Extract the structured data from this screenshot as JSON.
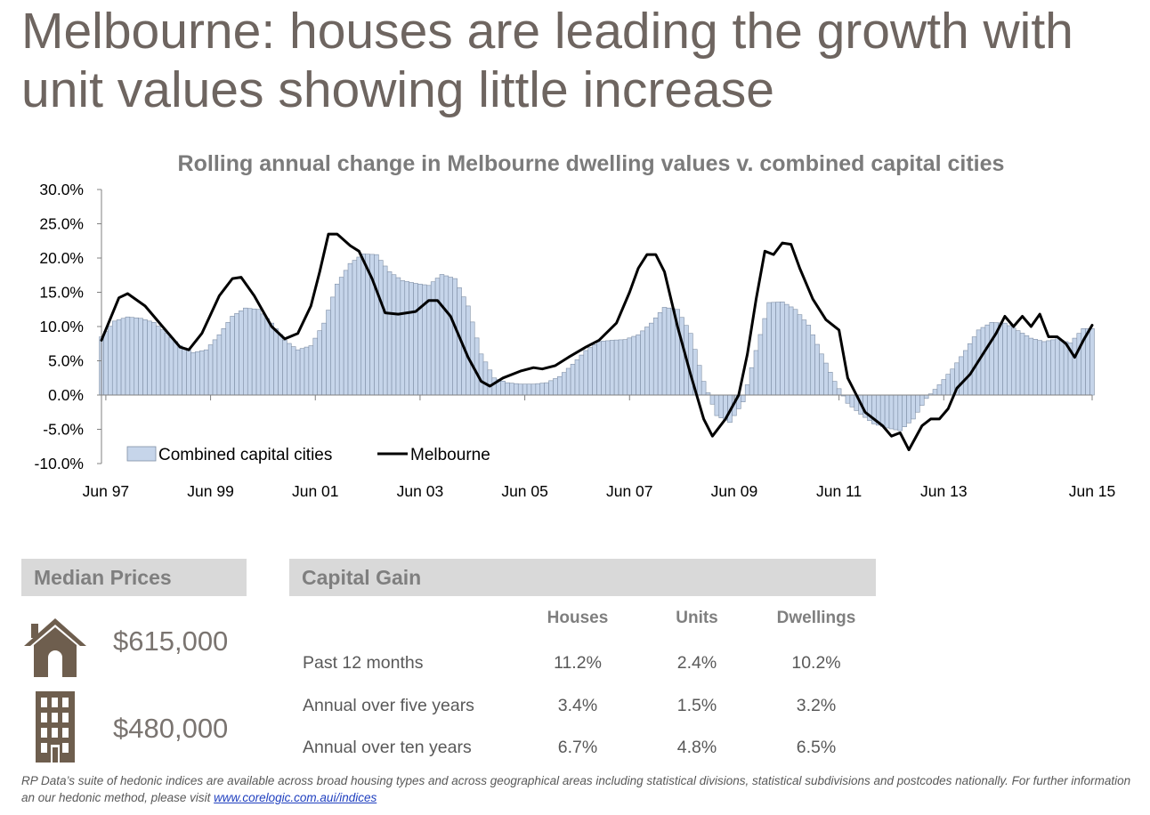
{
  "headline": {
    "line1": "Melbourne: houses are leading the growth with",
    "line2": "unit values showing little increase"
  },
  "chart_data": {
    "type": "bar+line",
    "title": "Rolling annual change in Melbourne dwelling values v. combined capital cities",
    "y_ticks": [
      "30.0%",
      "25.0%",
      "20.0%",
      "15.0%",
      "10.0%",
      "5.0%",
      "0.0%",
      "-5.0%",
      "-10.0%"
    ],
    "ylim": [
      -10,
      30
    ],
    "x_ticks": [
      "Jun 97",
      "Jun 99",
      "Jun 01",
      "Jun 03",
      "Jun 05",
      "Jun 07",
      "Jun 09",
      "Jun 11",
      "Jun 13",
      "Jun 15"
    ],
    "x_range": [
      "Jun 97",
      "Jun 15"
    ],
    "legend": {
      "position": "bottom-left",
      "bar_label": "Combined capital cities",
      "line_label": "Melbourne"
    },
    "series": [
      {
        "name": "Combined capital cities",
        "kind": "bar",
        "color": "#c6d5ea",
        "points": [
          [
            0,
            8.5
          ],
          [
            3,
            10.8
          ],
          [
            6,
            11.4
          ],
          [
            9,
            11.2
          ],
          [
            12,
            10.6
          ],
          [
            15,
            9.0
          ],
          [
            18,
            7.2
          ],
          [
            21,
            6.2
          ],
          [
            24,
            6.6
          ],
          [
            27,
            8.8
          ],
          [
            30,
            11.5
          ],
          [
            33,
            12.7
          ],
          [
            36,
            12.5
          ],
          [
            39,
            10.5
          ],
          [
            42,
            8.0
          ],
          [
            45,
            6.6
          ],
          [
            48,
            7.2
          ],
          [
            51,
            10.5
          ],
          [
            54,
            16.2
          ],
          [
            57,
            19.2
          ],
          [
            60,
            20.6
          ],
          [
            63,
            20.5
          ],
          [
            66,
            18.0
          ],
          [
            69,
            16.7
          ],
          [
            72,
            16.3
          ],
          [
            75,
            16.0
          ],
          [
            78,
            17.6
          ],
          [
            81,
            17.0
          ],
          [
            84,
            13.0
          ],
          [
            87,
            6.0
          ],
          [
            90,
            2.5
          ],
          [
            93,
            1.8
          ],
          [
            96,
            1.6
          ],
          [
            99,
            1.6
          ],
          [
            102,
            1.8
          ],
          [
            105,
            2.7
          ],
          [
            108,
            4.5
          ],
          [
            111,
            6.5
          ],
          [
            114,
            7.8
          ],
          [
            117,
            8.0
          ],
          [
            120,
            8.1
          ],
          [
            123,
            8.8
          ],
          [
            126,
            10.5
          ],
          [
            129,
            12.8
          ],
          [
            132,
            12.5
          ],
          [
            135,
            9.0
          ],
          [
            138,
            2.0
          ],
          [
            141,
            -3.0
          ],
          [
            144,
            -4.0
          ],
          [
            147,
            -1.0
          ],
          [
            150,
            6.5
          ],
          [
            153,
            13.5
          ],
          [
            156,
            13.6
          ],
          [
            159,
            12.5
          ],
          [
            162,
            10.2
          ],
          [
            165,
            6.0
          ],
          [
            168,
            2.0
          ],
          [
            171,
            -1.2
          ],
          [
            174,
            -2.8
          ],
          [
            177,
            -4.2
          ],
          [
            180,
            -4.8
          ],
          [
            183,
            -5.2
          ],
          [
            186,
            -3.5
          ],
          [
            189,
            -0.5
          ],
          [
            192,
            1.5
          ],
          [
            195,
            3.8
          ],
          [
            198,
            6.5
          ],
          [
            201,
            9.5
          ],
          [
            204,
            10.6
          ],
          [
            207,
            10.5
          ],
          [
            210,
            9.4
          ],
          [
            213,
            8.3
          ],
          [
            216,
            7.8
          ],
          [
            219,
            8.2
          ],
          [
            222,
            7.6
          ],
          [
            225,
            9.7
          ]
        ]
      },
      {
        "name": "Melbourne",
        "kind": "line",
        "color": "#000000",
        "points": [
          [
            0,
            8.0
          ],
          [
            4,
            14.2
          ],
          [
            6,
            14.8
          ],
          [
            10,
            13.0
          ],
          [
            14,
            10.0
          ],
          [
            18,
            7.0
          ],
          [
            20,
            6.6
          ],
          [
            23,
            9.0
          ],
          [
            27,
            14.5
          ],
          [
            30,
            17.0
          ],
          [
            32,
            17.2
          ],
          [
            35,
            14.5
          ],
          [
            39,
            10.0
          ],
          [
            42,
            8.2
          ],
          [
            45,
            9.0
          ],
          [
            48,
            13.0
          ],
          [
            50,
            18.0
          ],
          [
            52,
            23.5
          ],
          [
            54,
            23.5
          ],
          [
            57,
            21.8
          ],
          [
            59,
            21.0
          ],
          [
            62,
            17.0
          ],
          [
            65,
            12.0
          ],
          [
            68,
            11.8
          ],
          [
            72,
            12.2
          ],
          [
            75,
            13.8
          ],
          [
            77,
            13.8
          ],
          [
            80,
            11.5
          ],
          [
            84,
            5.5
          ],
          [
            87,
            2.0
          ],
          [
            89,
            1.3
          ],
          [
            92,
            2.5
          ],
          [
            96,
            3.5
          ],
          [
            99,
            4.0
          ],
          [
            101,
            3.8
          ],
          [
            104,
            4.3
          ],
          [
            107,
            5.5
          ],
          [
            111,
            7.0
          ],
          [
            114,
            8.0
          ],
          [
            118,
            10.5
          ],
          [
            121,
            15.0
          ],
          [
            123,
            18.5
          ],
          [
            125,
            20.5
          ],
          [
            127,
            20.5
          ],
          [
            129,
            18.0
          ],
          [
            132,
            10.0
          ],
          [
            135,
            3.0
          ],
          [
            138,
            -3.5
          ],
          [
            140,
            -6.0
          ],
          [
            143,
            -3.5
          ],
          [
            146,
            0.0
          ],
          [
            148,
            6.0
          ],
          [
            150,
            14.0
          ],
          [
            152,
            21.0
          ],
          [
            154,
            20.5
          ],
          [
            156,
            22.2
          ],
          [
            158,
            22.0
          ],
          [
            160,
            18.5
          ],
          [
            163,
            14.0
          ],
          [
            166,
            11.0
          ],
          [
            169,
            9.5
          ],
          [
            171,
            2.5
          ],
          [
            173,
            0.0
          ],
          [
            175,
            -2.5
          ],
          [
            177,
            -3.5
          ],
          [
            179,
            -4.5
          ],
          [
            181,
            -6.0
          ],
          [
            183,
            -5.5
          ],
          [
            185,
            -8.0
          ],
          [
            188,
            -4.5
          ],
          [
            190,
            -3.5
          ],
          [
            192,
            -3.5
          ],
          [
            194,
            -2.0
          ],
          [
            196,
            1.0
          ],
          [
            199,
            3.0
          ],
          [
            201,
            5.0
          ],
          [
            203,
            7.0
          ],
          [
            205,
            9.0
          ],
          [
            207,
            11.5
          ],
          [
            209,
            10.0
          ],
          [
            211,
            11.5
          ],
          [
            213,
            10.0
          ],
          [
            215,
            11.8
          ],
          [
            217,
            8.5
          ],
          [
            219,
            8.5
          ],
          [
            221,
            7.5
          ],
          [
            223,
            5.5
          ],
          [
            225,
            8.0
          ],
          [
            227,
            10.2
          ]
        ]
      }
    ]
  },
  "median_prices": {
    "title": "Median Prices",
    "house_icon": "house-icon",
    "unit_icon": "apartment-building-icon",
    "house_price": "$615,000",
    "unit_price": "$480,000"
  },
  "capital_gain": {
    "title": "Capital Gain",
    "columns": [
      "Houses",
      "Units",
      "Dwellings"
    ],
    "rows": [
      {
        "label": "Past 12 months",
        "values": [
          "11.2%",
          "2.4%",
          "10.2%"
        ]
      },
      {
        "label": "Annual over five years",
        "values": [
          "3.4%",
          "1.5%",
          "3.2%"
        ]
      },
      {
        "label": "Annual over ten years",
        "values": [
          "6.7%",
          "4.8%",
          "6.5%"
        ]
      }
    ]
  },
  "footnote": {
    "text": "RP Data’s suite of hedonic indices are available across broad housing types and across geographical areas including statistical divisions, statistical subdivisions and postcodes nationally.  For further information an our hedonic method, please visit ",
    "link": "www.corelogic.com.aui/indices"
  },
  "colors": {
    "headline": "#6e6560",
    "bars": "#c6d5ea",
    "bar_outline": "#7f8fa6",
    "melbourne_line": "#000000",
    "panel_header": "#d9d9d9"
  }
}
